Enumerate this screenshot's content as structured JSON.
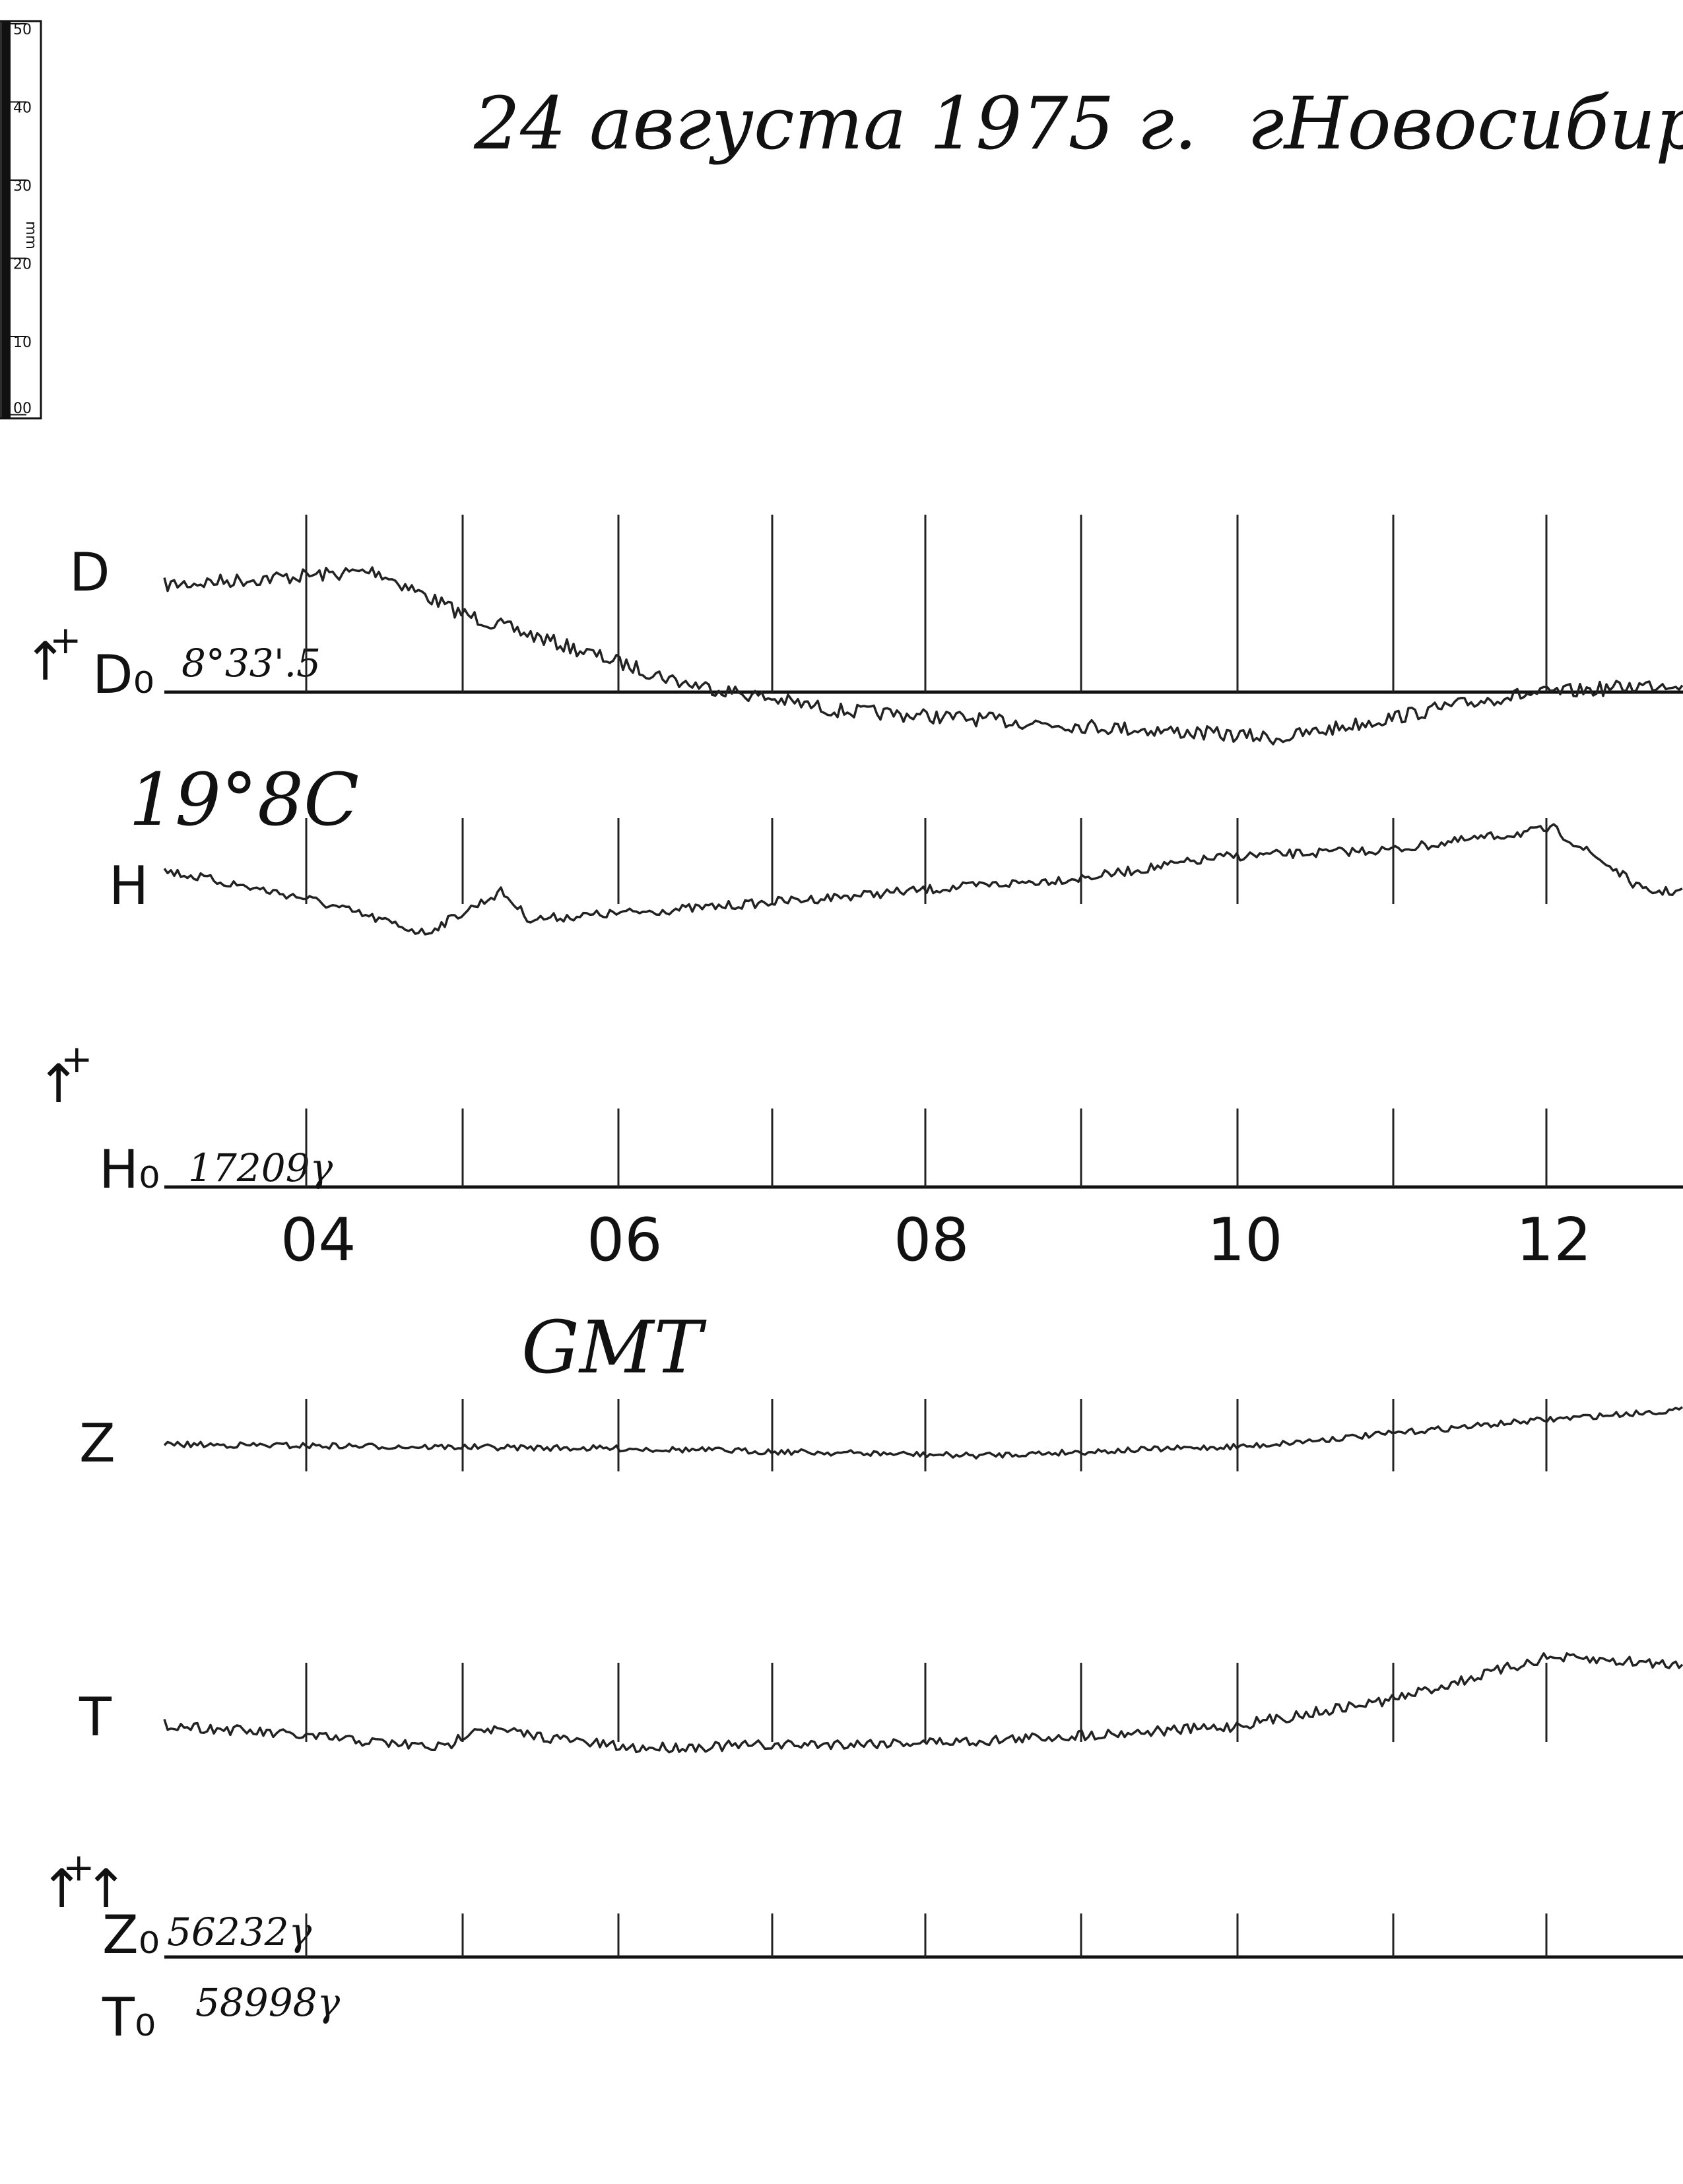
{
  "header": {
    "date": "24 августа 1975 г.",
    "place": "гНовосибир"
  },
  "scale": {
    "labels": [
      "50",
      "40",
      "30",
      "20",
      "10",
      "00"
    ],
    "unit": "mm"
  },
  "polarity": "+",
  "traces": {
    "D": {
      "label": "D",
      "base_label": "D₀",
      "base_value": "8°33'.5"
    },
    "H": {
      "label": "H",
      "temperature": "19°8C",
      "base_label": "H₀",
      "base_value": "17209γ"
    },
    "Z": {
      "label": "Z",
      "base_label": "Z₀",
      "base_value": "56232γ"
    },
    "T": {
      "label": "T",
      "base_label": "T₀",
      "base_value": "58998γ"
    }
  },
  "time_axis": {
    "labels": [
      "04",
      "06",
      "08",
      "10",
      "12"
    ],
    "name": "GMT"
  }
}
